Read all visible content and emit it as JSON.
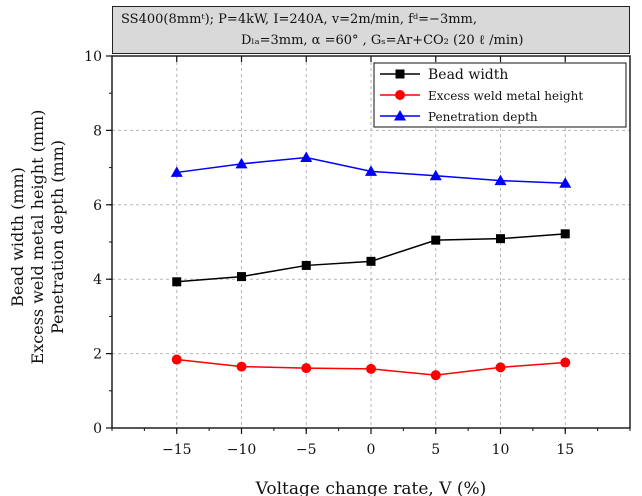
{
  "header": {
    "line1": "SS400(8mmᵗ); P=4kW, I=240A,  v=2m/min, fᵈ=−3mm,",
    "line2": "Dₗₐ=3mm, α =60° , Gₛ=Ar+CO₂ (20 ℓ /min)"
  },
  "chart_data": {
    "type": "line",
    "x": [
      -15,
      -10,
      -5,
      0,
      5,
      10,
      15
    ],
    "xticks": [
      -15,
      -10,
      -5,
      0,
      5,
      10,
      15
    ],
    "xlim": [
      -20,
      20
    ],
    "ylim": [
      0,
      10
    ],
    "yticks": [
      0,
      2,
      4,
      6,
      8,
      10
    ],
    "xlabel": "Voltage change rate, V (%)",
    "ylabel_lines": [
      "Bead width (mm)",
      "Excess weld metal height (mm)",
      "Penetration depth (mm)"
    ],
    "grid": true,
    "legend_position": "top-right",
    "series": [
      {
        "name": "Bead width",
        "color": "#000000",
        "marker": "square",
        "values": [
          3.93,
          4.07,
          4.37,
          4.48,
          5.05,
          5.09,
          5.22
        ]
      },
      {
        "name": "Excess weld metal height",
        "color": "#ff0000",
        "marker": "circle",
        "values": [
          1.84,
          1.65,
          1.61,
          1.59,
          1.42,
          1.63,
          1.76
        ]
      },
      {
        "name": "Penetration depth",
        "color": "#0000ff",
        "marker": "triangle",
        "values": [
          6.87,
          7.1,
          7.27,
          6.9,
          6.78,
          6.65,
          6.58
        ]
      }
    ]
  }
}
